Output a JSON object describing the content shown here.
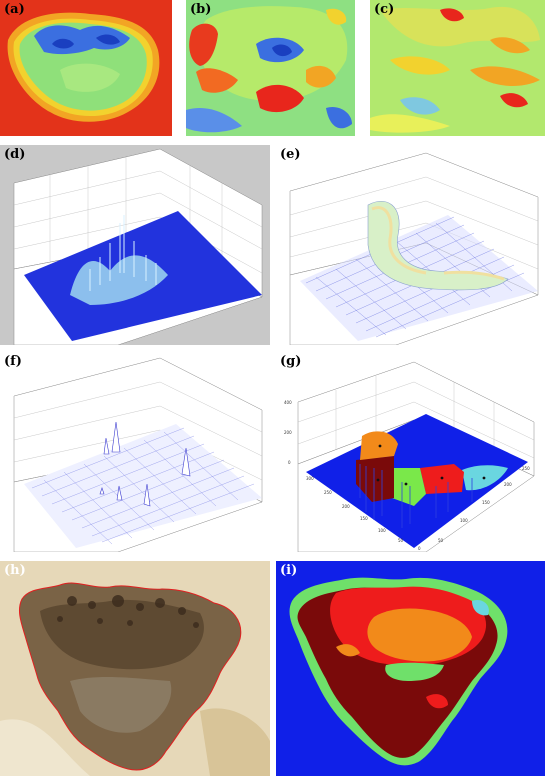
{
  "figure": {
    "panels": [
      {
        "id": "a",
        "label": "(a)"
      },
      {
        "id": "b",
        "label": "(b)"
      },
      {
        "id": "c",
        "label": "(c)"
      },
      {
        "id": "d",
        "label": "(d)"
      },
      {
        "id": "e",
        "label": "(e)"
      },
      {
        "id": "f",
        "label": "(f)"
      },
      {
        "id": "g",
        "label": "(g)"
      },
      {
        "id": "h",
        "label": "(h)"
      },
      {
        "id": "i",
        "label": "(i)"
      }
    ],
    "ticks": {
      "g_z": [
        "400",
        "200",
        "0"
      ],
      "g_x": [
        "300",
        "250",
        "200",
        "150",
        "100",
        "50",
        "0"
      ],
      "g_y": [
        "50",
        "100",
        "150",
        "200",
        "250"
      ]
    },
    "colors": {
      "heat_red": "#e8261c",
      "heat_yellow": "#f2d22e",
      "heat_green": "#7fe07a",
      "heat_blue": "#2f5fe0",
      "surface_blue": "#2233dd",
      "mesh_blue": "#4a55d8",
      "cluster_dark_red": "#7a0a0a",
      "cluster_red": "#ee1c1c",
      "cluster_orange": "#f28a1a",
      "cluster_green": "#6fe06a",
      "cluster_cyan": "#6ad6e0",
      "segment_background": "#1020e8",
      "skin": "#e9dcc0",
      "lesion": "#6d563d",
      "border_red": "#e02020"
    }
  }
}
